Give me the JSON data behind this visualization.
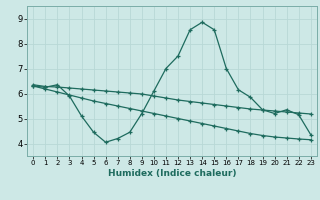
{
  "title": "",
  "xlabel": "Humidex (Indice chaleur)",
  "xlim": [
    -0.5,
    23.5
  ],
  "ylim": [
    3.5,
    9.5
  ],
  "xticks": [
    0,
    1,
    2,
    3,
    4,
    5,
    6,
    7,
    8,
    9,
    10,
    11,
    12,
    13,
    14,
    15,
    16,
    17,
    18,
    19,
    20,
    21,
    22,
    23
  ],
  "yticks": [
    4,
    5,
    6,
    7,
    8,
    9
  ],
  "bg_color": "#cde8e6",
  "grid_color": "#b8d8d6",
  "line_color": "#1e6b5e",
  "curve1_x": [
    0,
    1,
    2,
    3,
    4,
    5,
    6,
    7,
    8,
    9,
    10,
    11,
    12,
    13,
    14,
    15,
    16,
    17,
    18,
    19,
    20,
    21,
    22,
    23
  ],
  "curve1_y": [
    6.3,
    6.25,
    6.35,
    5.9,
    5.1,
    4.45,
    4.05,
    4.2,
    4.45,
    5.2,
    6.1,
    7.0,
    7.5,
    8.55,
    8.85,
    8.55,
    7.0,
    6.15,
    5.85,
    5.35,
    5.2,
    5.35,
    5.15,
    4.35
  ],
  "curve2_x": [
    0,
    1,
    2,
    3,
    4,
    5,
    6,
    7,
    8,
    9,
    10,
    11,
    12,
    13,
    14,
    15,
    16,
    17,
    18,
    19,
    20,
    21,
    22,
    23
  ],
  "curve2_y": [
    6.35,
    6.28,
    6.26,
    6.22,
    6.18,
    6.14,
    6.1,
    6.06,
    6.02,
    5.98,
    5.9,
    5.82,
    5.74,
    5.68,
    5.62,
    5.56,
    5.5,
    5.44,
    5.38,
    5.34,
    5.3,
    5.26,
    5.22,
    5.18
  ],
  "curve3_x": [
    0,
    1,
    2,
    3,
    4,
    5,
    6,
    7,
    8,
    9,
    10,
    11,
    12,
    13,
    14,
    15,
    16,
    17,
    18,
    19,
    20,
    21,
    22,
    23
  ],
  "curve3_y": [
    6.3,
    6.18,
    6.06,
    5.94,
    5.82,
    5.7,
    5.6,
    5.5,
    5.4,
    5.3,
    5.2,
    5.1,
    5.0,
    4.9,
    4.8,
    4.7,
    4.6,
    4.5,
    4.4,
    4.32,
    4.26,
    4.22,
    4.18,
    4.15
  ]
}
